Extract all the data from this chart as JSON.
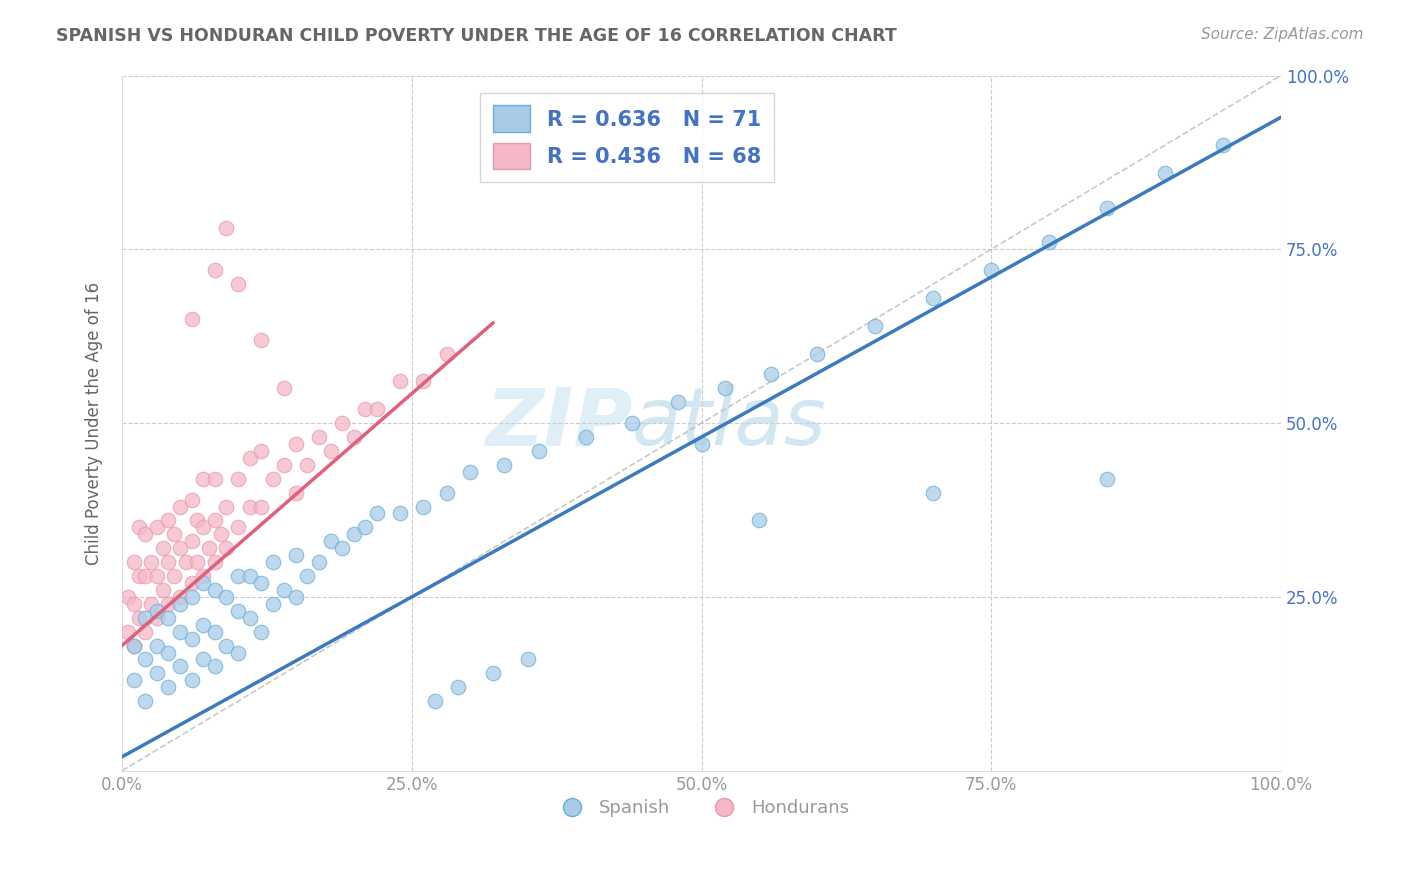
{
  "title": "SPANISH VS HONDURAN CHILD POVERTY UNDER THE AGE OF 16 CORRELATION CHART",
  "source": "Source: ZipAtlas.com",
  "ylabel": "Child Poverty Under the Age of 16",
  "watermark": "ZIPatlas",
  "blue_label": "Spanish",
  "pink_label": "Hondurans",
  "blue_R": 0.636,
  "blue_N": 71,
  "pink_R": 0.436,
  "pink_N": 68,
  "blue_color": "#a8cce8",
  "pink_color": "#f5b8c8",
  "blue_line_color": "#3a7bbf",
  "pink_line_color": "#e0607a",
  "blue_edge_color": "#6aaed6",
  "pink_edge_color": "#e898b0",
  "legend_text_color": "#4472c4",
  "title_color": "#666666",
  "grid_color": "#cccccc",
  "axis_color": "#999999",
  "right_axis_color": "#4472c4",
  "blue_line_slope": 0.92,
  "blue_line_intercept": 0.02,
  "pink_line_slope": 1.45,
  "pink_line_intercept": 0.18,
  "pink_line_x_start": 0.0,
  "pink_line_x_end": 0.32,
  "blue_x": [
    0.01,
    0.01,
    0.02,
    0.02,
    0.02,
    0.03,
    0.03,
    0.03,
    0.04,
    0.04,
    0.04,
    0.05,
    0.05,
    0.05,
    0.06,
    0.06,
    0.06,
    0.07,
    0.07,
    0.07,
    0.08,
    0.08,
    0.08,
    0.09,
    0.09,
    0.1,
    0.1,
    0.1,
    0.11,
    0.11,
    0.12,
    0.12,
    0.13,
    0.13,
    0.14,
    0.15,
    0.15,
    0.16,
    0.17,
    0.18,
    0.19,
    0.2,
    0.21,
    0.22,
    0.24,
    0.26,
    0.28,
    0.3,
    0.33,
    0.36,
    0.4,
    0.44,
    0.48,
    0.52,
    0.56,
    0.6,
    0.65,
    0.7,
    0.75,
    0.8,
    0.85,
    0.9,
    0.95,
    0.27,
    0.29,
    0.32,
    0.35,
    0.5,
    0.55,
    0.7,
    0.85
  ],
  "blue_y": [
    0.13,
    0.18,
    0.1,
    0.16,
    0.22,
    0.14,
    0.18,
    0.23,
    0.12,
    0.17,
    0.22,
    0.15,
    0.2,
    0.24,
    0.13,
    0.19,
    0.25,
    0.16,
    0.21,
    0.27,
    0.15,
    0.2,
    0.26,
    0.18,
    0.25,
    0.17,
    0.23,
    0.28,
    0.22,
    0.28,
    0.2,
    0.27,
    0.24,
    0.3,
    0.26,
    0.25,
    0.31,
    0.28,
    0.3,
    0.33,
    0.32,
    0.34,
    0.35,
    0.37,
    0.37,
    0.38,
    0.4,
    0.43,
    0.44,
    0.46,
    0.48,
    0.5,
    0.53,
    0.55,
    0.57,
    0.6,
    0.64,
    0.68,
    0.72,
    0.76,
    0.81,
    0.86,
    0.9,
    0.1,
    0.12,
    0.14,
    0.16,
    0.47,
    0.36,
    0.4,
    0.42
  ],
  "pink_x": [
    0.005,
    0.005,
    0.01,
    0.01,
    0.01,
    0.015,
    0.015,
    0.015,
    0.02,
    0.02,
    0.02,
    0.025,
    0.025,
    0.03,
    0.03,
    0.03,
    0.035,
    0.035,
    0.04,
    0.04,
    0.04,
    0.045,
    0.045,
    0.05,
    0.05,
    0.05,
    0.055,
    0.06,
    0.06,
    0.06,
    0.065,
    0.065,
    0.07,
    0.07,
    0.07,
    0.075,
    0.08,
    0.08,
    0.08,
    0.085,
    0.09,
    0.09,
    0.1,
    0.1,
    0.11,
    0.11,
    0.12,
    0.12,
    0.13,
    0.14,
    0.15,
    0.15,
    0.16,
    0.17,
    0.18,
    0.19,
    0.2,
    0.21,
    0.22,
    0.24,
    0.26,
    0.28,
    0.06,
    0.08,
    0.09,
    0.1,
    0.12,
    0.14
  ],
  "pink_y": [
    0.2,
    0.25,
    0.18,
    0.24,
    0.3,
    0.22,
    0.28,
    0.35,
    0.2,
    0.28,
    0.34,
    0.24,
    0.3,
    0.22,
    0.28,
    0.35,
    0.26,
    0.32,
    0.24,
    0.3,
    0.36,
    0.28,
    0.34,
    0.25,
    0.32,
    0.38,
    0.3,
    0.27,
    0.33,
    0.39,
    0.3,
    0.36,
    0.28,
    0.35,
    0.42,
    0.32,
    0.3,
    0.36,
    0.42,
    0.34,
    0.32,
    0.38,
    0.35,
    0.42,
    0.38,
    0.45,
    0.38,
    0.46,
    0.42,
    0.44,
    0.4,
    0.47,
    0.44,
    0.48,
    0.46,
    0.5,
    0.48,
    0.52,
    0.52,
    0.56,
    0.56,
    0.6,
    0.65,
    0.72,
    0.78,
    0.7,
    0.62,
    0.55
  ],
  "xlim": [
    0.0,
    1.0
  ],
  "ylim": [
    0.0,
    1.0
  ],
  "xticks": [
    0.0,
    0.25,
    0.5,
    0.75,
    1.0
  ],
  "yticks": [
    0.0,
    0.25,
    0.5,
    0.75,
    1.0
  ],
  "xtick_labels": [
    "0.0%",
    "25.0%",
    "50.0%",
    "75.0%",
    "100.0%"
  ],
  "ytick_labels_right": [
    "",
    "25.0%",
    "50.0%",
    "75.0%",
    "100.0%"
  ],
  "background_color": "#ffffff",
  "fig_background_color": "#ffffff"
}
